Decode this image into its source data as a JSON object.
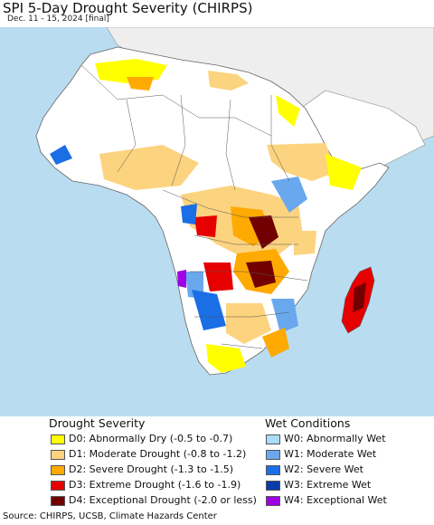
{
  "header": {
    "title": "SPI 5-Day Drought Severity (CHIRPS)",
    "subtitle": "Dec. 11 - 15, 2024 [final]"
  },
  "map": {
    "region": "Africa and Arabian Peninsula",
    "ocean_color": "#b9dcf0",
    "land_color": "#ffffff",
    "outside_region_color": "#eeeeee"
  },
  "legend": {
    "drought_heading": "Drought Severity",
    "wet_heading": "Wet Conditions",
    "drought_items": [
      {
        "code": "D0",
        "label": "D0: Abnormally Dry (-0.5 to -0.7)",
        "color": "#ffff00"
      },
      {
        "code": "D1",
        "label": "D1: Moderate Drought (-0.8 to -1.2)",
        "color": "#fcd37f"
      },
      {
        "code": "D2",
        "label": "D2: Severe Drought (-1.3 to -1.5)",
        "color": "#ffaa00"
      },
      {
        "code": "D3",
        "label": "D3: Extreme Drought (-1.6 to -1.9)",
        "color": "#e60000"
      },
      {
        "code": "D4",
        "label": "D4: Exceptional Drought (-2.0 or less)",
        "color": "#730000"
      }
    ],
    "wet_items": [
      {
        "code": "W0",
        "label": "W0: Abnormally Wet",
        "color": "#aaddfa"
      },
      {
        "code": "W1",
        "label": "W1: Moderate Wet",
        "color": "#6aa8ee"
      },
      {
        "code": "W2",
        "label": "W2: Severe Wet",
        "color": "#1a6ee6"
      },
      {
        "code": "W3",
        "label": "W3: Extreme Wet",
        "color": "#0a3ca8"
      },
      {
        "code": "W4",
        "label": "W4: Exceptional Wet",
        "color": "#a000e6"
      }
    ]
  },
  "footer": {
    "source": "Source: CHIRPS, UCSB, Climate Hazards Center"
  }
}
